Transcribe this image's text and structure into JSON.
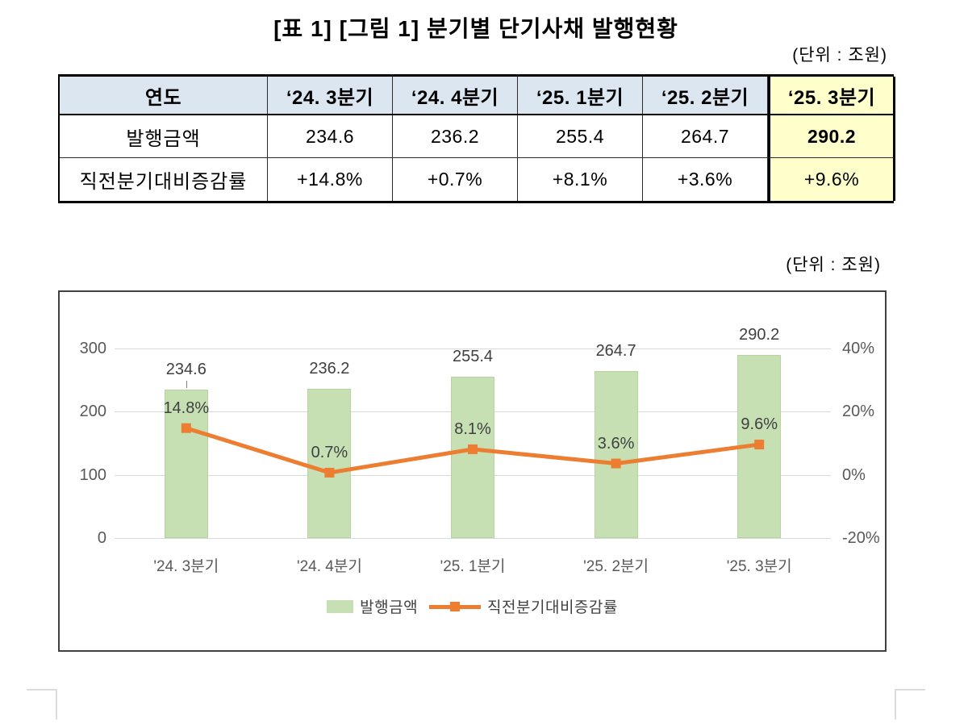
{
  "page": {
    "title": "[표 1] [그림 1] 분기별 단기사채 발행현황",
    "table_unit": "(단위 : 조원)",
    "chart_unit": "(단위 : 조원)"
  },
  "table": {
    "header": [
      "연도",
      "‘24. 3분기",
      "‘24. 4분기",
      "‘25. 1분기",
      "‘25. 2분기",
      "‘25. 3분기"
    ],
    "row1": {
      "label": "발행금액",
      "values": [
        "234.6",
        "236.2",
        "255.4",
        "264.7",
        "290.2"
      ]
    },
    "row2": {
      "label": "직전분기대비증감률",
      "values": [
        "+14.8%",
        "+0.7%",
        "+8.1%",
        "+3.6%",
        "+9.6%"
      ]
    },
    "highlight_column": "‘25. 3분기"
  },
  "colors": {
    "header_bg": "#dce6f1",
    "highlight_bg": "#ffffcc",
    "bar": "#c6e0b4",
    "bar_border": "#b5d4a0",
    "line": "#ed7d31",
    "grid": "#d9d9d9",
    "axis_text": "#595959",
    "label_text": "#404040"
  },
  "chart_data": {
    "type": "bar",
    "subtype": "bar+line combo",
    "categories": [
      "'24. 3분기",
      "'24. 4분기",
      "'25. 1분기",
      "'25. 2분기",
      "'25. 3분기"
    ],
    "series": [
      {
        "name": "발행금액",
        "type": "bar",
        "axis": "left",
        "color": "#c6e0b4",
        "values": [
          234.6,
          236.2,
          255.4,
          264.7,
          290.2
        ],
        "labels": [
          "234.6",
          "236.2",
          "255.4",
          "264.7",
          "290.2"
        ]
      },
      {
        "name": "직전분기대비증감률",
        "type": "line",
        "axis": "right",
        "color": "#ed7d31",
        "values": [
          14.8,
          0.7,
          8.1,
          3.6,
          9.6
        ],
        "labels": [
          "14.8%",
          "0.7%",
          "8.1%",
          "3.6%",
          "9.6%"
        ]
      }
    ],
    "left_axis": {
      "tick_labels": [
        "300",
        "200",
        "100",
        "0"
      ],
      "tick_values": [
        300,
        200,
        100,
        0
      ],
      "min": 0,
      "max": 300
    },
    "right_axis": {
      "tick_labels": [
        "40%",
        "20%",
        "0%",
        "-20%"
      ],
      "tick_values": [
        40,
        20,
        0,
        -20
      ],
      "min": -20,
      "max": 40
    },
    "grid": true,
    "legend_position": "bottom"
  }
}
